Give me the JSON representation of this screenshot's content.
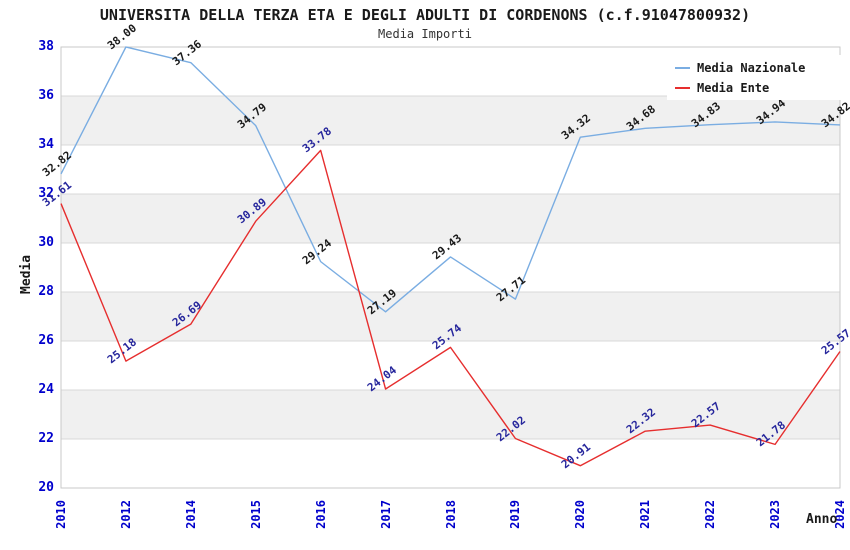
{
  "header": {
    "title": "UNIVERSITA DELLA TERZA ETA E DEGLI ADULTI DI CORDENONS (c.f.91047800932)",
    "subtitle": "Media Importi"
  },
  "axes": {
    "y_title": "Media",
    "x_title": "Anno"
  },
  "colors": {
    "nazionale_line": "#7aade2",
    "ente_line": "#e62e2e",
    "nazionale_label": "#1a1a1a",
    "ente_label": "#26269c",
    "tick_label": "#0000cc",
    "gridline": "#d9d9d9",
    "plot_border": "#c9c9c9",
    "band_fill": "#f0f0f0",
    "background": "#ffffff"
  },
  "chart_data": {
    "type": "line",
    "title": "UNIVERSITA DELLA TERZA ETA E DEGLI ADULTI DI CORDENONS (c.f.91047800932)",
    "subtitle": "Media Importi",
    "xlabel": "Anno",
    "ylabel": "Media",
    "ylim": [
      20,
      38
    ],
    "y_ticks": [
      20,
      22,
      24,
      26,
      28,
      30,
      32,
      34,
      36,
      38
    ],
    "grid": true,
    "band_pairs": [
      [
        34,
        36
      ],
      [
        30,
        32
      ],
      [
        26,
        28
      ],
      [
        22,
        24
      ]
    ],
    "legend_position": "top-right",
    "categories": [
      "2010",
      "2012",
      "2014",
      "2015",
      "2016",
      "2017",
      "2018",
      "2019",
      "2020",
      "2021",
      "2022",
      "2023",
      "2024"
    ],
    "series": [
      {
        "name": "Media Nazionale",
        "color": "#7aade2",
        "label_color": "#1a1a1a",
        "values": [
          32.82,
          38.0,
          37.36,
          34.79,
          29.24,
          27.19,
          29.43,
          27.71,
          34.32,
          34.68,
          34.83,
          34.94,
          34.82
        ],
        "labels": [
          "32.82",
          "38.00",
          "37.36",
          "34.79",
          "29.24",
          "27.19",
          "29.43",
          "27.71",
          "34.32",
          "34.68",
          "34.83",
          "34.94",
          "34.82"
        ]
      },
      {
        "name": "Media Ente",
        "color": "#e62e2e",
        "label_color": "#26269c",
        "values": [
          31.61,
          25.18,
          26.69,
          30.89,
          33.78,
          24.04,
          25.74,
          22.02,
          20.91,
          22.32,
          22.57,
          21.78,
          25.57
        ],
        "labels": [
          "31.61",
          "25.18",
          "26.69",
          "30.89",
          "33.78",
          "24.04",
          "25.74",
          "22.02",
          "20.91",
          "22.32",
          "22.57",
          "21.78",
          "25.57"
        ]
      }
    ]
  }
}
